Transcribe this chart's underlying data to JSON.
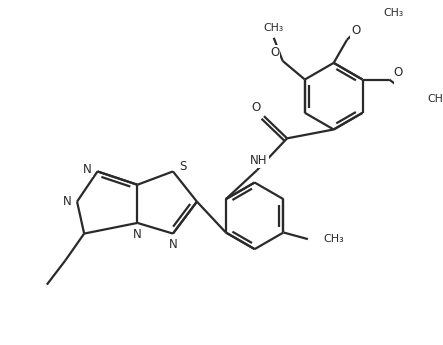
{
  "bg_color": "#ffffff",
  "line_color": "#2a2a2a",
  "text_color": "#2a2a2a",
  "bond_lw": 1.6,
  "figsize": [
    4.43,
    3.45
  ],
  "dpi": 100,
  "xlim": [
    0,
    8.86
  ],
  "ylim": [
    0,
    6.9
  ]
}
